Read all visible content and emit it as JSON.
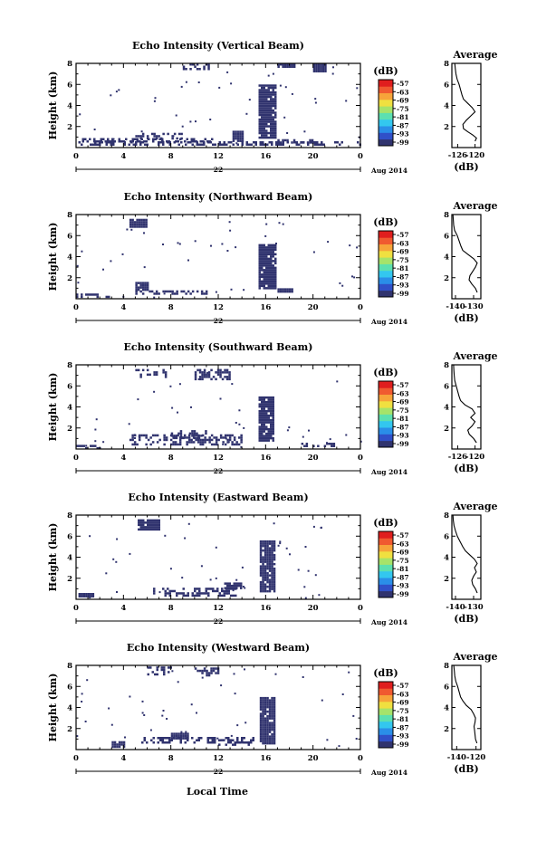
{
  "figure": {
    "xlabel": "Local Time",
    "date_label": "Aug 2014",
    "day_label": "22"
  },
  "colorbar": {
    "unit": "(dB)",
    "ticks": [
      "-57",
      "-63",
      "-69",
      "-75",
      "-81",
      "-87",
      "-93",
      "-99"
    ],
    "colors": [
      "#30336e",
      "#3050c8",
      "#2a8ee8",
      "#33c7ef",
      "#5ce0b0",
      "#a6e36a",
      "#f0e040",
      "#f7a43a",
      "#f05a30",
      "#e01e1e"
    ]
  },
  "chart_data": [
    {
      "type": "heatmap",
      "title": "Echo Intensity (Vertical Beam)",
      "ylabel": "Height (km)",
      "xlim": [
        0,
        24
      ],
      "ylim": [
        0,
        8
      ],
      "xticks": [
        "0",
        "4",
        "8",
        "12",
        "16",
        "20",
        "0"
      ],
      "yticks": [
        "2",
        "4",
        "6",
        "8"
      ],
      "colorbar_unit": "(dB)",
      "avg_title": "Average",
      "avg_xlabel": "(dB)",
      "avg_xticks": [
        "-126",
        "-120"
      ],
      "avg_xlim": [
        -128,
        -118
      ],
      "avg_profile": [
        [
          -120.0,
          0.6
        ],
        [
          -119.5,
          0.9
        ],
        [
          -120.8,
          1.2
        ],
        [
          -122.5,
          1.5
        ],
        [
          -124.0,
          1.8
        ],
        [
          -124.2,
          2.2
        ],
        [
          -123.0,
          2.6
        ],
        [
          -121.5,
          3.0
        ],
        [
          -120.0,
          3.4
        ],
        [
          -121.0,
          3.8
        ],
        [
          -122.5,
          4.2
        ],
        [
          -124.0,
          4.6
        ],
        [
          -124.5,
          5.0
        ],
        [
          -125.0,
          5.5
        ],
        [
          -125.5,
          6.0
        ],
        [
          -126.2,
          6.5
        ],
        [
          -126.6,
          7.0
        ],
        [
          -126.8,
          7.5
        ],
        [
          -127.0,
          8.0
        ]
      ],
      "echo_regions": [
        [
          0.0,
          0.3,
          24.0,
          0.6
        ],
        [
          0.5,
          0.6,
          11.5,
          0.9
        ],
        [
          5.0,
          0.9,
          9.0,
          1.4
        ],
        [
          13.2,
          0.6,
          14.0,
          1.6
        ],
        [
          15.4,
          1.0,
          16.8,
          6.0
        ],
        [
          16.8,
          0.4,
          20.0,
          0.8
        ],
        [
          9.0,
          7.4,
          11.2,
          8.0
        ],
        [
          17.0,
          7.6,
          18.5,
          8.0
        ],
        [
          20.0,
          7.2,
          21.0,
          8.0
        ]
      ]
    },
    {
      "type": "heatmap",
      "title": "Echo Intensity (Northward Beam)",
      "ylabel": "Height (km)",
      "xlim": [
        0,
        24
      ],
      "ylim": [
        0,
        8
      ],
      "xticks": [
        "0",
        "4",
        "8",
        "12",
        "16",
        "20",
        "0"
      ],
      "yticks": [
        "2",
        "4",
        "6",
        "8"
      ],
      "colorbar_unit": "(dB)",
      "avg_title": "Average",
      "avg_xlabel": "(dB)",
      "avg_xticks": [
        "-140",
        "-130"
      ],
      "avg_xlim": [
        -142,
        -126
      ],
      "avg_profile": [
        [
          -128.0,
          0.6
        ],
        [
          -129.0,
          1.0
        ],
        [
          -131.0,
          1.4
        ],
        [
          -132.5,
          1.8
        ],
        [
          -132.0,
          2.2
        ],
        [
          -130.5,
          2.6
        ],
        [
          -129.0,
          3.0
        ],
        [
          -128.0,
          3.4
        ],
        [
          -130.0,
          3.8
        ],
        [
          -133.0,
          4.2
        ],
        [
          -136.0,
          4.6
        ],
        [
          -137.0,
          5.0
        ],
        [
          -138.0,
          5.5
        ],
        [
          -139.0,
          6.0
        ],
        [
          -140.5,
          6.5
        ],
        [
          -141.0,
          7.0
        ],
        [
          -141.2,
          7.5
        ],
        [
          -141.4,
          8.0
        ]
      ],
      "echo_regions": [
        [
          0.0,
          0.2,
          3.0,
          0.5
        ],
        [
          5.0,
          0.4,
          11.0,
          0.8
        ],
        [
          5.0,
          0.8,
          6.0,
          1.6
        ],
        [
          15.4,
          1.0,
          16.8,
          5.2
        ],
        [
          4.5,
          6.8,
          6.0,
          7.6
        ],
        [
          17.0,
          0.6,
          18.2,
          1.0
        ]
      ]
    },
    {
      "type": "heatmap",
      "title": "Echo Intensity (Southward Beam)",
      "ylabel": "Height (km)",
      "xlim": [
        0,
        24
      ],
      "ylim": [
        0,
        8
      ],
      "xticks": [
        "0",
        "4",
        "8",
        "12",
        "16",
        "20",
        "0"
      ],
      "yticks": [
        "2",
        "4",
        "6",
        "8"
      ],
      "colorbar_unit": "(dB)",
      "avg_title": "Average",
      "avg_xlabel": "(dB)",
      "avg_xticks": [
        "-126",
        "-120"
      ],
      "avg_xlim": [
        -128,
        -118
      ],
      "avg_profile": [
        [
          -119.5,
          0.6
        ],
        [
          -120.5,
          1.0
        ],
        [
          -122.0,
          1.4
        ],
        [
          -122.5,
          1.8
        ],
        [
          -121.0,
          2.2
        ],
        [
          -120.0,
          2.6
        ],
        [
          -121.5,
          3.0
        ],
        [
          -120.0,
          3.4
        ],
        [
          -121.0,
          3.8
        ],
        [
          -123.5,
          4.2
        ],
        [
          -125.0,
          4.6
        ],
        [
          -125.5,
          5.0
        ],
        [
          -126.0,
          5.5
        ],
        [
          -126.5,
          6.0
        ],
        [
          -127.0,
          6.5
        ],
        [
          -127.2,
          7.0
        ],
        [
          -127.3,
          7.5
        ],
        [
          -127.4,
          8.0
        ]
      ],
      "echo_regions": [
        [
          0.0,
          0.1,
          2.0,
          0.4
        ],
        [
          4.5,
          0.4,
          14.0,
          1.4
        ],
        [
          8.0,
          1.0,
          11.0,
          1.8
        ],
        [
          15.4,
          0.9,
          16.6,
          5.0
        ],
        [
          5.0,
          6.8,
          7.5,
          7.6
        ],
        [
          10.0,
          6.6,
          13.0,
          7.6
        ],
        [
          19.0,
          0.2,
          22.0,
          0.6
        ]
      ]
    },
    {
      "type": "heatmap",
      "title": "Echo Intensity (Eastward Beam)",
      "ylabel": "Height (km)",
      "xlim": [
        0,
        24
      ],
      "ylim": [
        0,
        8
      ],
      "xticks": [
        "0",
        "4",
        "8",
        "12",
        "16",
        "20",
        "0"
      ],
      "yticks": [
        "2",
        "4",
        "6",
        "8"
      ],
      "colorbar_unit": "(dB)",
      "avg_title": "Average",
      "avg_xlabel": "(dB)",
      "avg_xticks": [
        "-140",
        "-130"
      ],
      "avg_xlim": [
        -142,
        -126
      ],
      "avg_profile": [
        [
          -128.0,
          0.6
        ],
        [
          -129.0,
          1.0
        ],
        [
          -130.5,
          1.4
        ],
        [
          -131.0,
          1.8
        ],
        [
          -130.0,
          2.2
        ],
        [
          -128.5,
          2.6
        ],
        [
          -129.5,
          3.0
        ],
        [
          -128.0,
          3.4
        ],
        [
          -129.5,
          3.8
        ],
        [
          -132.0,
          4.2
        ],
        [
          -134.5,
          4.6
        ],
        [
          -136.0,
          5.0
        ],
        [
          -137.5,
          5.5
        ],
        [
          -139.0,
          6.0
        ],
        [
          -140.0,
          6.5
        ],
        [
          -140.8,
          7.0
        ],
        [
          -141.2,
          7.5
        ],
        [
          -141.4,
          8.0
        ]
      ],
      "echo_regions": [
        [
          6.5,
          0.3,
          13.5,
          1.1
        ],
        [
          12.5,
          1.0,
          14.0,
          1.6
        ],
        [
          15.5,
          0.8,
          16.8,
          5.6
        ],
        [
          0.2,
          0.3,
          1.5,
          0.6
        ],
        [
          5.2,
          6.6,
          7.0,
          7.6
        ]
      ]
    },
    {
      "type": "heatmap",
      "title": "Echo Intensity (Westward Beam)",
      "ylabel": "Height (km)",
      "xlim": [
        0,
        24
      ],
      "ylim": [
        0,
        8
      ],
      "xticks": [
        "0",
        "4",
        "8",
        "12",
        "16",
        "20",
        "0"
      ],
      "yticks": [
        "2",
        "4",
        "6",
        "8"
      ],
      "colorbar_unit": "(dB)",
      "avg_title": "Average",
      "avg_xlabel": "(dB)",
      "avg_xticks": [
        "-140",
        "-120"
      ],
      "avg_xlim": [
        -145,
        -115
      ],
      "avg_profile": [
        [
          -119.0,
          0.6
        ],
        [
          -120.5,
          1.0
        ],
        [
          -121.0,
          1.4
        ],
        [
          -121.5,
          1.8
        ],
        [
          -122.0,
          2.2
        ],
        [
          -121.0,
          2.6
        ],
        [
          -120.5,
          3.0
        ],
        [
          -122.5,
          3.4
        ],
        [
          -125.0,
          3.8
        ],
        [
          -130.0,
          4.2
        ],
        [
          -133.5,
          4.6
        ],
        [
          -136.0,
          5.0
        ],
        [
          -137.5,
          5.5
        ],
        [
          -139.0,
          6.0
        ],
        [
          -141.0,
          6.5
        ],
        [
          -142.0,
          7.0
        ],
        [
          -142.5,
          7.5
        ],
        [
          -143.0,
          8.0
        ]
      ],
      "echo_regions": [
        [
          5.5,
          0.6,
          15.0,
          1.2
        ],
        [
          8.0,
          1.0,
          9.5,
          1.6
        ],
        [
          15.5,
          0.6,
          16.8,
          5.0
        ],
        [
          3.0,
          0.3,
          4.0,
          0.8
        ],
        [
          12.0,
          0.5,
          14.5,
          1.0
        ],
        [
          6.0,
          7.2,
          8.0,
          7.9
        ],
        [
          10.0,
          7.0,
          12.0,
          7.8
        ]
      ]
    }
  ]
}
